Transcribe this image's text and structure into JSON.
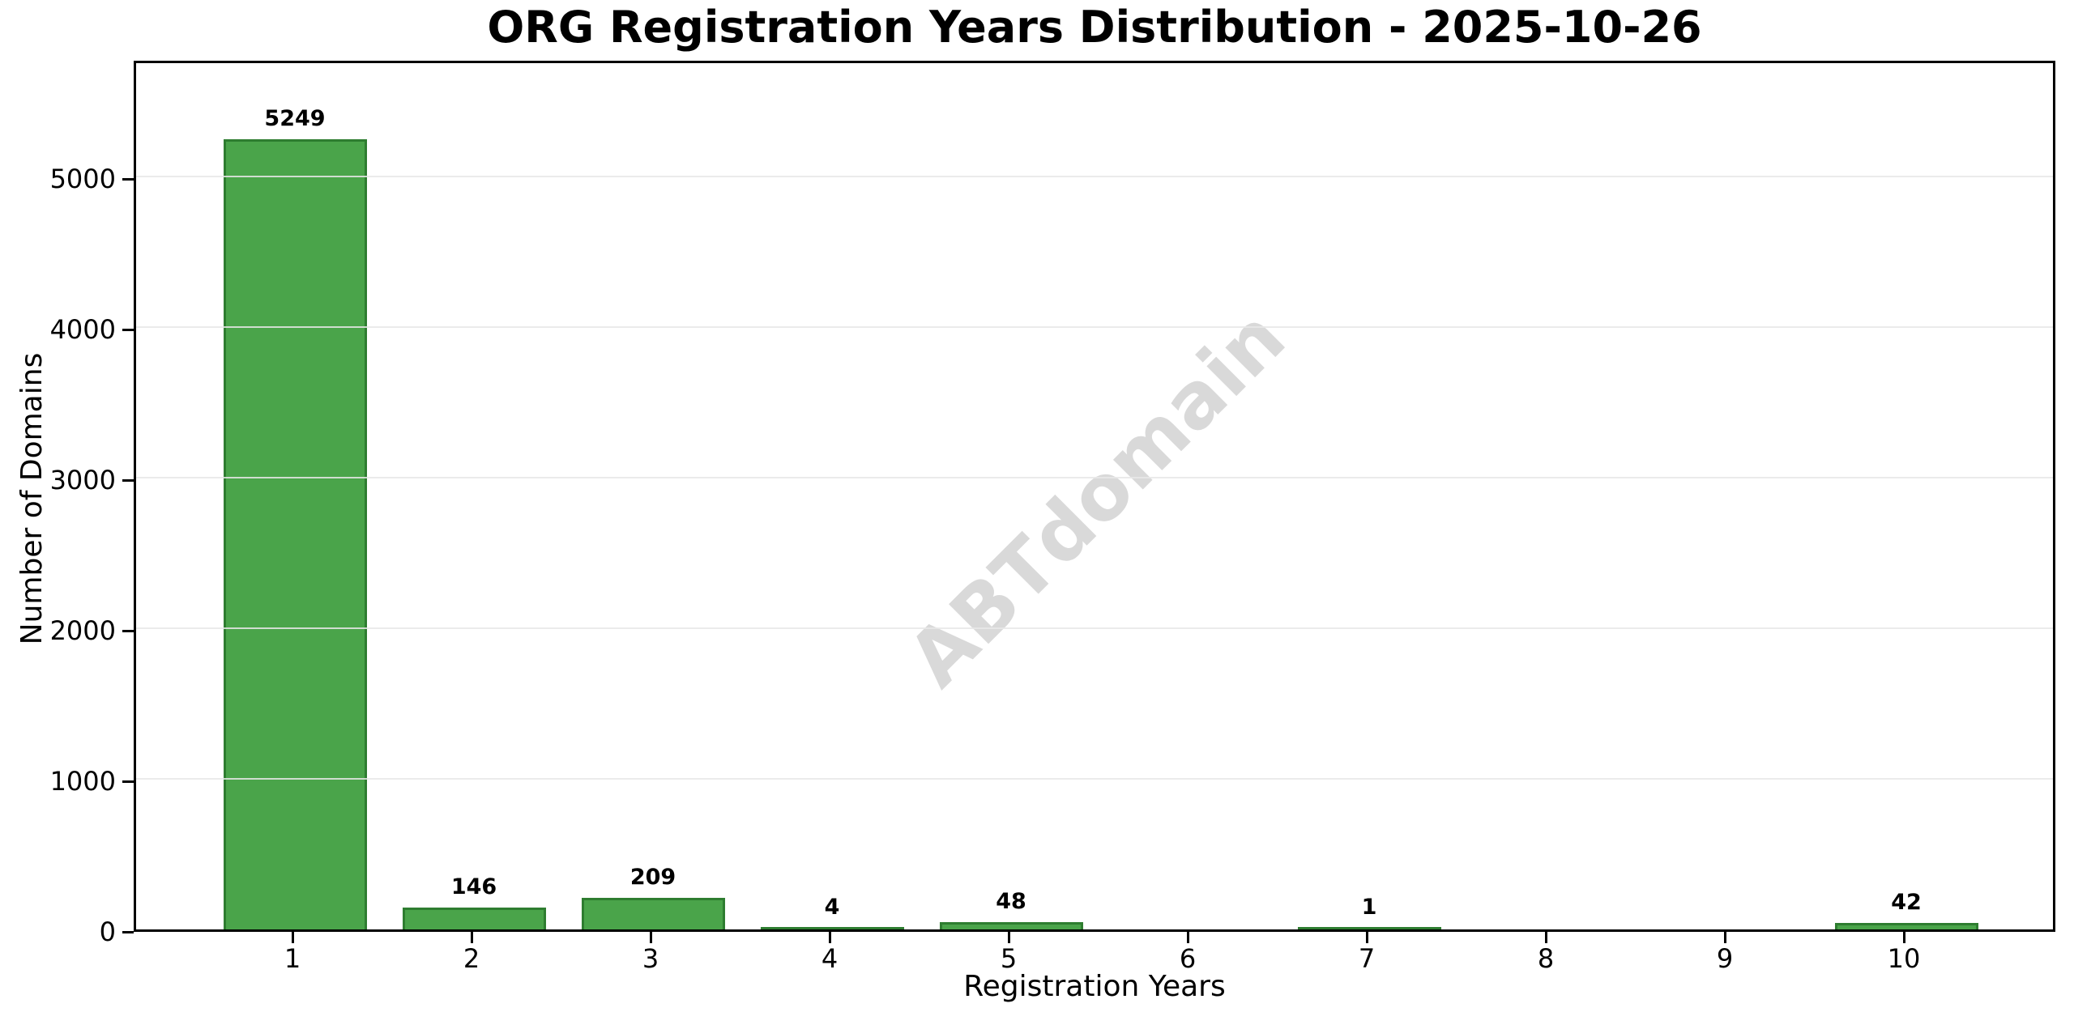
{
  "chart_data": {
    "type": "bar",
    "title": "ORG Registration Years Distribution - 2025-10-26",
    "xlabel": "Registration Years",
    "ylabel": "Number of Domains",
    "categories": [
      "1",
      "2",
      "3",
      "4",
      "5",
      "6",
      "7",
      "8",
      "9",
      "10"
    ],
    "values": [
      5249,
      146,
      209,
      4,
      48,
      0,
      1,
      0,
      0,
      42
    ],
    "bar_labels": [
      "5249",
      "146",
      "209",
      "4",
      "48",
      "",
      "1",
      "",
      "",
      "42"
    ],
    "yticks": [
      0,
      1000,
      2000,
      3000,
      4000,
      5000
    ],
    "ytick_labels": [
      "0",
      "1000",
      "2000",
      "3000",
      "4000",
      "5000"
    ],
    "ylim": [
      0,
      5785
    ],
    "grid": "horizontal",
    "legend": "none",
    "bar_color": "#4aa44a",
    "bar_edge_color": "#2e7d30",
    "grid_color": "#e8e8e8",
    "watermark": "ABTdomain",
    "watermark_color": "#d9d9d9"
  }
}
